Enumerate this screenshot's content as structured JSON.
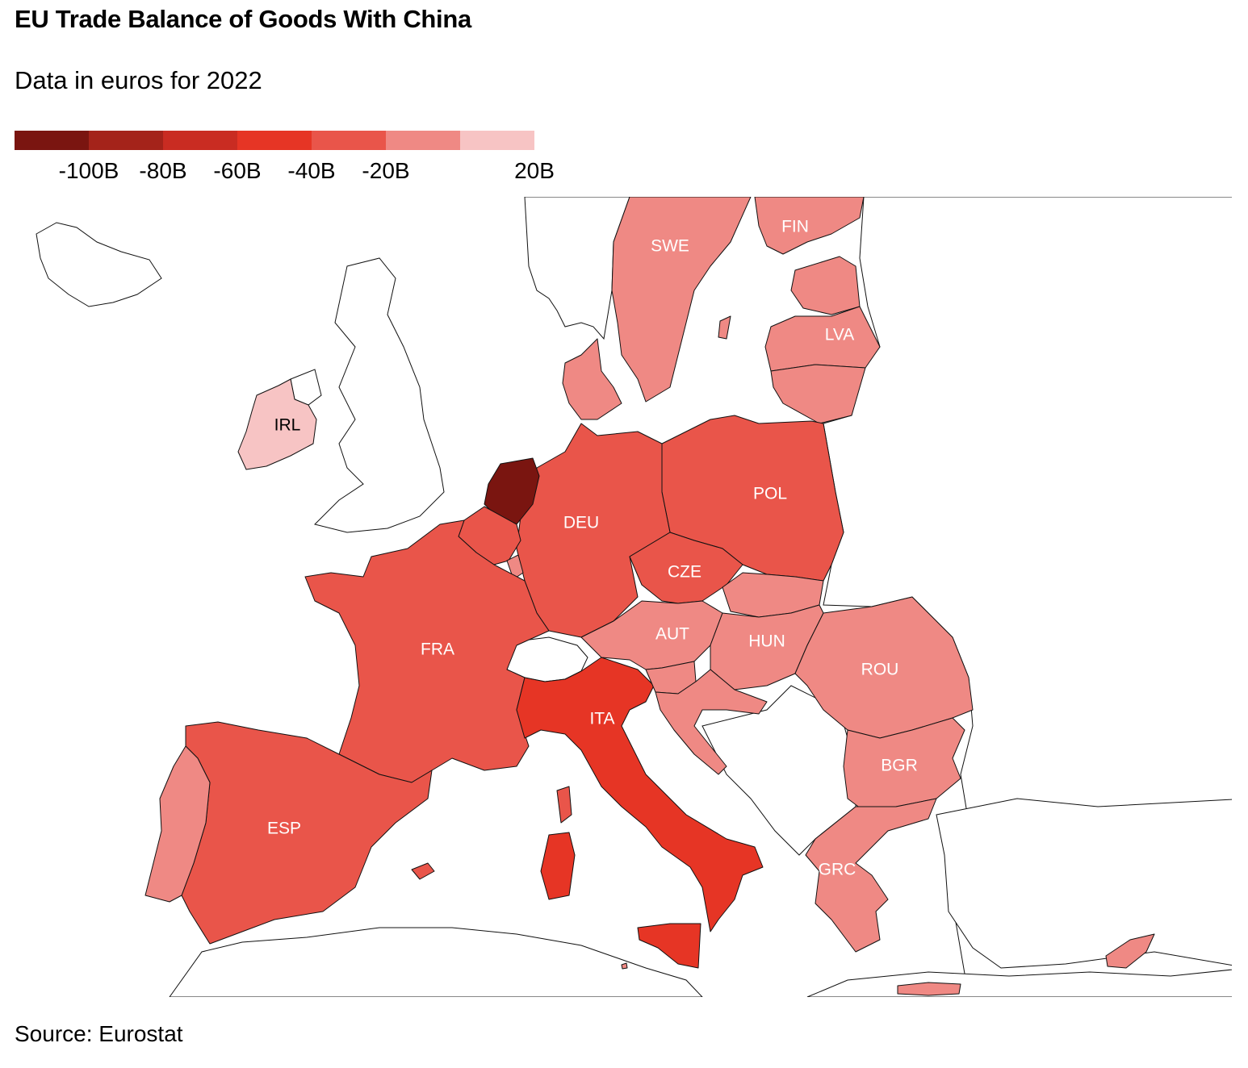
{
  "title": "EU Trade Balance of Goods With China",
  "subtitle": "Data in euros for 2022",
  "source": "Source: Eurostat",
  "legend": {
    "colors": [
      "#7a1510",
      "#a4231a",
      "#c92c22",
      "#e63525",
      "#e9554a",
      "#ef8984",
      "#f7c4c4"
    ],
    "ticks": [
      "-100B",
      "-80B",
      "-60B",
      "-40B",
      "-20B",
      "20B"
    ]
  },
  "colors": {
    "neg100": "#7a1510",
    "neg40": "#e63525",
    "neg20": "#e9554a",
    "neg0": "#ef8984",
    "pos": "#f7c4c4",
    "nonEU": "#ffffff"
  },
  "countries": [
    {
      "code": "NLD",
      "label": "",
      "fill": "#7a1510"
    },
    {
      "code": "DEU",
      "label": "DEU",
      "fill": "#e9554a"
    },
    {
      "code": "FRA",
      "label": "FRA",
      "fill": "#e9554a"
    },
    {
      "code": "ESP",
      "label": "ESP",
      "fill": "#e9554a"
    },
    {
      "code": "POL",
      "label": "POL",
      "fill": "#e9554a"
    },
    {
      "code": "CZE",
      "label": "CZE",
      "fill": "#e9554a"
    },
    {
      "code": "BEL",
      "label": "",
      "fill": "#e9554a"
    },
    {
      "code": "ITA",
      "label": "ITA",
      "fill": "#e63525"
    },
    {
      "code": "PRT",
      "label": "",
      "fill": "#ef8984"
    },
    {
      "code": "SWE",
      "label": "SWE",
      "fill": "#ef8984"
    },
    {
      "code": "FIN",
      "label": "FIN",
      "fill": "#ef8984"
    },
    {
      "code": "DNK",
      "label": "",
      "fill": "#ef8984"
    },
    {
      "code": "EST",
      "label": "",
      "fill": "#ef8984"
    },
    {
      "code": "LVA",
      "label": "LVA",
      "fill": "#ef8984"
    },
    {
      "code": "LTU",
      "label": "",
      "fill": "#ef8984"
    },
    {
      "code": "AUT",
      "label": "AUT",
      "fill": "#ef8984"
    },
    {
      "code": "HUN",
      "label": "HUN",
      "fill": "#ef8984"
    },
    {
      "code": "SVK",
      "label": "",
      "fill": "#ef8984"
    },
    {
      "code": "SVN",
      "label": "",
      "fill": "#ef8984"
    },
    {
      "code": "HRV",
      "label": "",
      "fill": "#ef8984"
    },
    {
      "code": "ROU",
      "label": "ROU",
      "fill": "#ef8984"
    },
    {
      "code": "BGR",
      "label": "BGR",
      "fill": "#ef8984"
    },
    {
      "code": "GRC",
      "label": "GRC",
      "fill": "#ef8984"
    },
    {
      "code": "CYP",
      "label": "",
      "fill": "#ef8984"
    },
    {
      "code": "LUX",
      "label": "",
      "fill": "#ef8984"
    },
    {
      "code": "MLT",
      "label": "",
      "fill": "#ef8984"
    },
    {
      "code": "IRL",
      "label": "IRL",
      "fill": "#f7c4c4"
    }
  ]
}
